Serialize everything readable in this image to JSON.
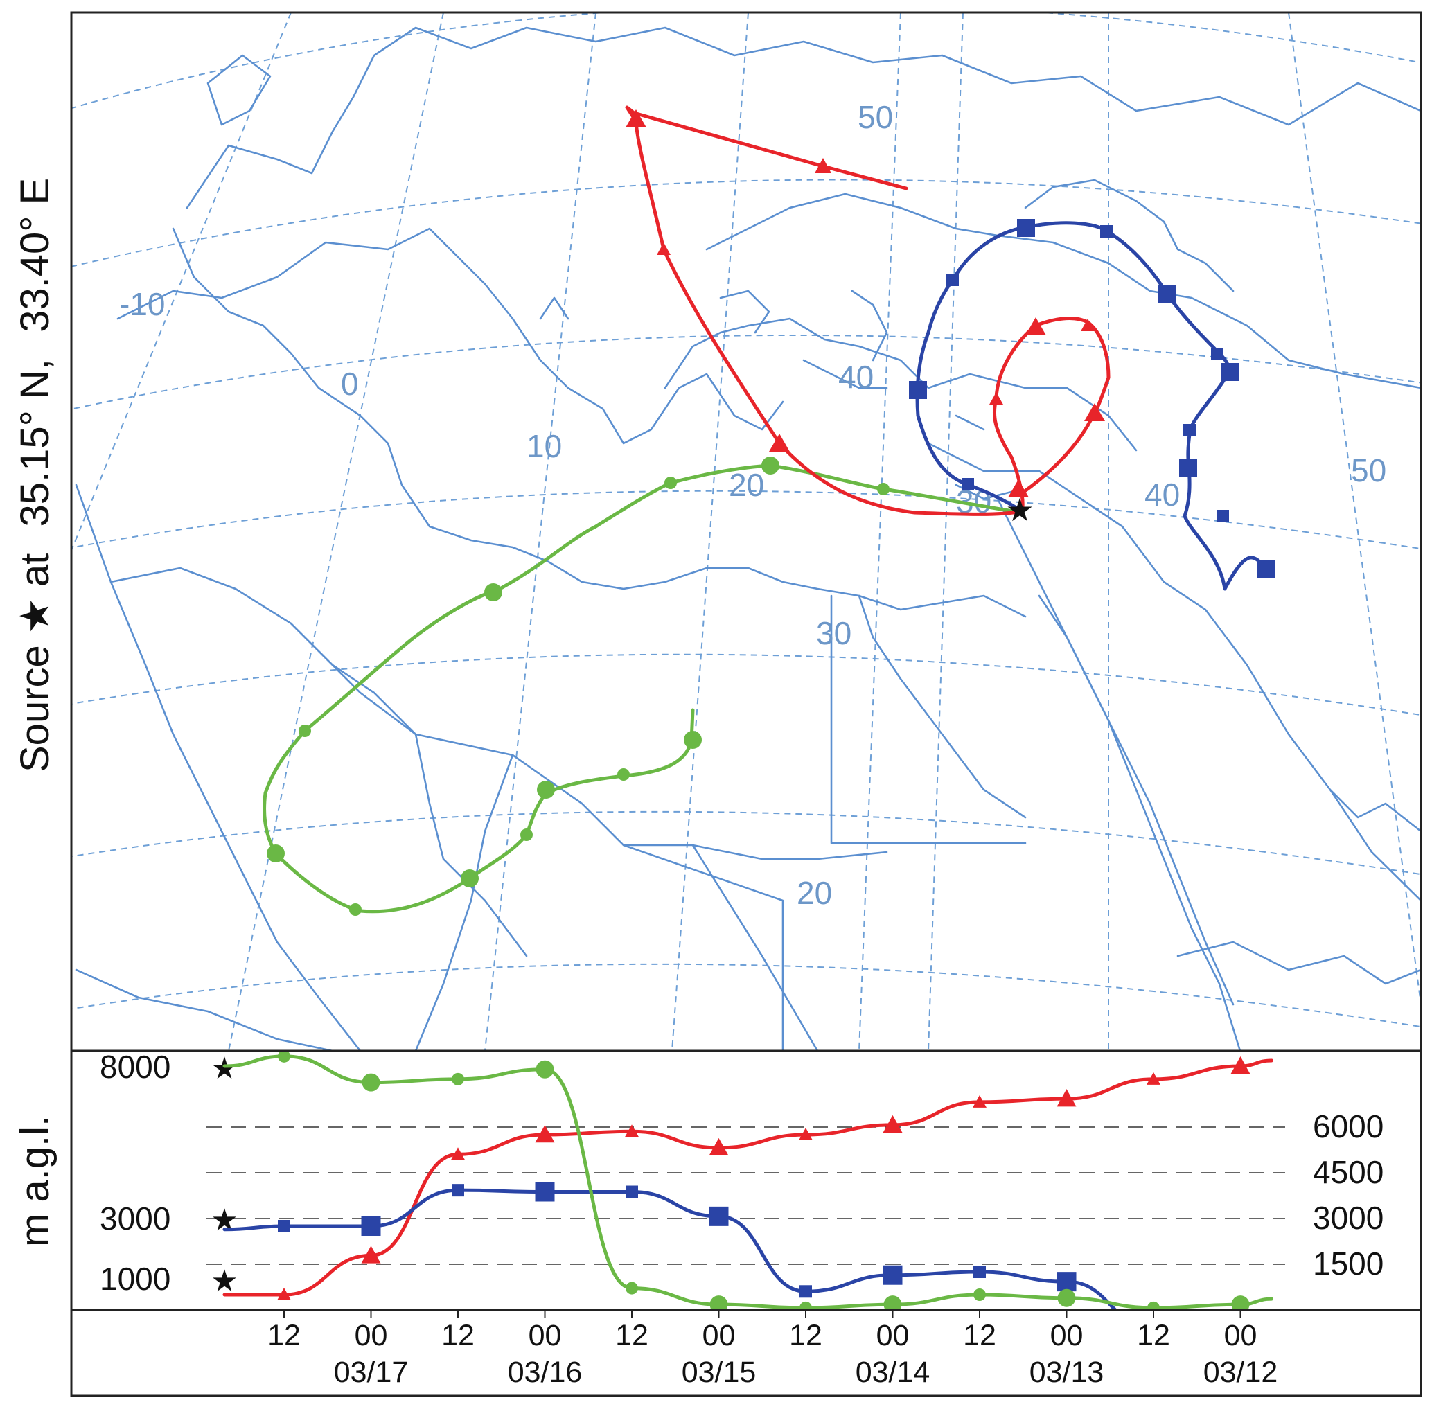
{
  "title": {
    "source_label": "Source",
    "at_label": "at",
    "lat_label": "35.15° N,",
    "lon_label": "33.40° E"
  },
  "map": {
    "longitude_labels": [
      "-10",
      "0",
      "10",
      "20",
      "30",
      "40",
      "50"
    ],
    "latitude_labels": [
      "50",
      "40",
      "30",
      "20"
    ],
    "colors": {
      "borders": "#5b8fd0",
      "graticule": "#6d9fd6",
      "labels": "#6d97c8"
    }
  },
  "legend": {
    "source_marker": "star-icon"
  },
  "vertical_panel": {
    "ylabel": "m a.g.l.",
    "left_start_heights": [
      "8000",
      "3000",
      "1000"
    ],
    "right_reference_lines": [
      "6000",
      "4500",
      "3000",
      "1500"
    ],
    "x_ticks": [
      "12",
      "00",
      "12",
      "00",
      "12",
      "00",
      "12",
      "00",
      "12",
      "00",
      "12",
      "00"
    ],
    "x_dates": [
      "03/17",
      "03/16",
      "03/15",
      "03/14",
      "03/13",
      "03/12"
    ]
  },
  "chart_data": {
    "type": "line",
    "xlabel": "",
    "ylabel": "m a.g.l.",
    "x": [
      "03/17 12",
      "03/17 00",
      "03/16 12",
      "03/16 00",
      "03/15 12",
      "03/15 00",
      "03/14 12",
      "03/14 00",
      "03/13 12",
      "03/13 00",
      "03/12 12",
      "03/12 00"
    ],
    "series": [
      {
        "color": "#e8242a",
        "marker": "triangle",
        "start_height": 1000,
        "values": [
          1000,
          2200,
          5300,
          5900,
          6000,
          5500,
          5900,
          6200,
          6900,
          7000,
          7600,
          8000
        ]
      },
      {
        "color": "#2a44a6",
        "marker": "square",
        "start_height": 3000,
        "values": [
          3100,
          3100,
          4200,
          4150,
          4150,
          3400,
          1100,
          1600,
          1700,
          1400,
          0,
          0
        ]
      },
      {
        "color": "#6ab845",
        "marker": "circle",
        "start_height": 8000,
        "values": [
          8300,
          7500,
          7600,
          7900,
          1200,
          700,
          600,
          700,
          1000,
          900,
          600,
          700
        ]
      }
    ]
  }
}
